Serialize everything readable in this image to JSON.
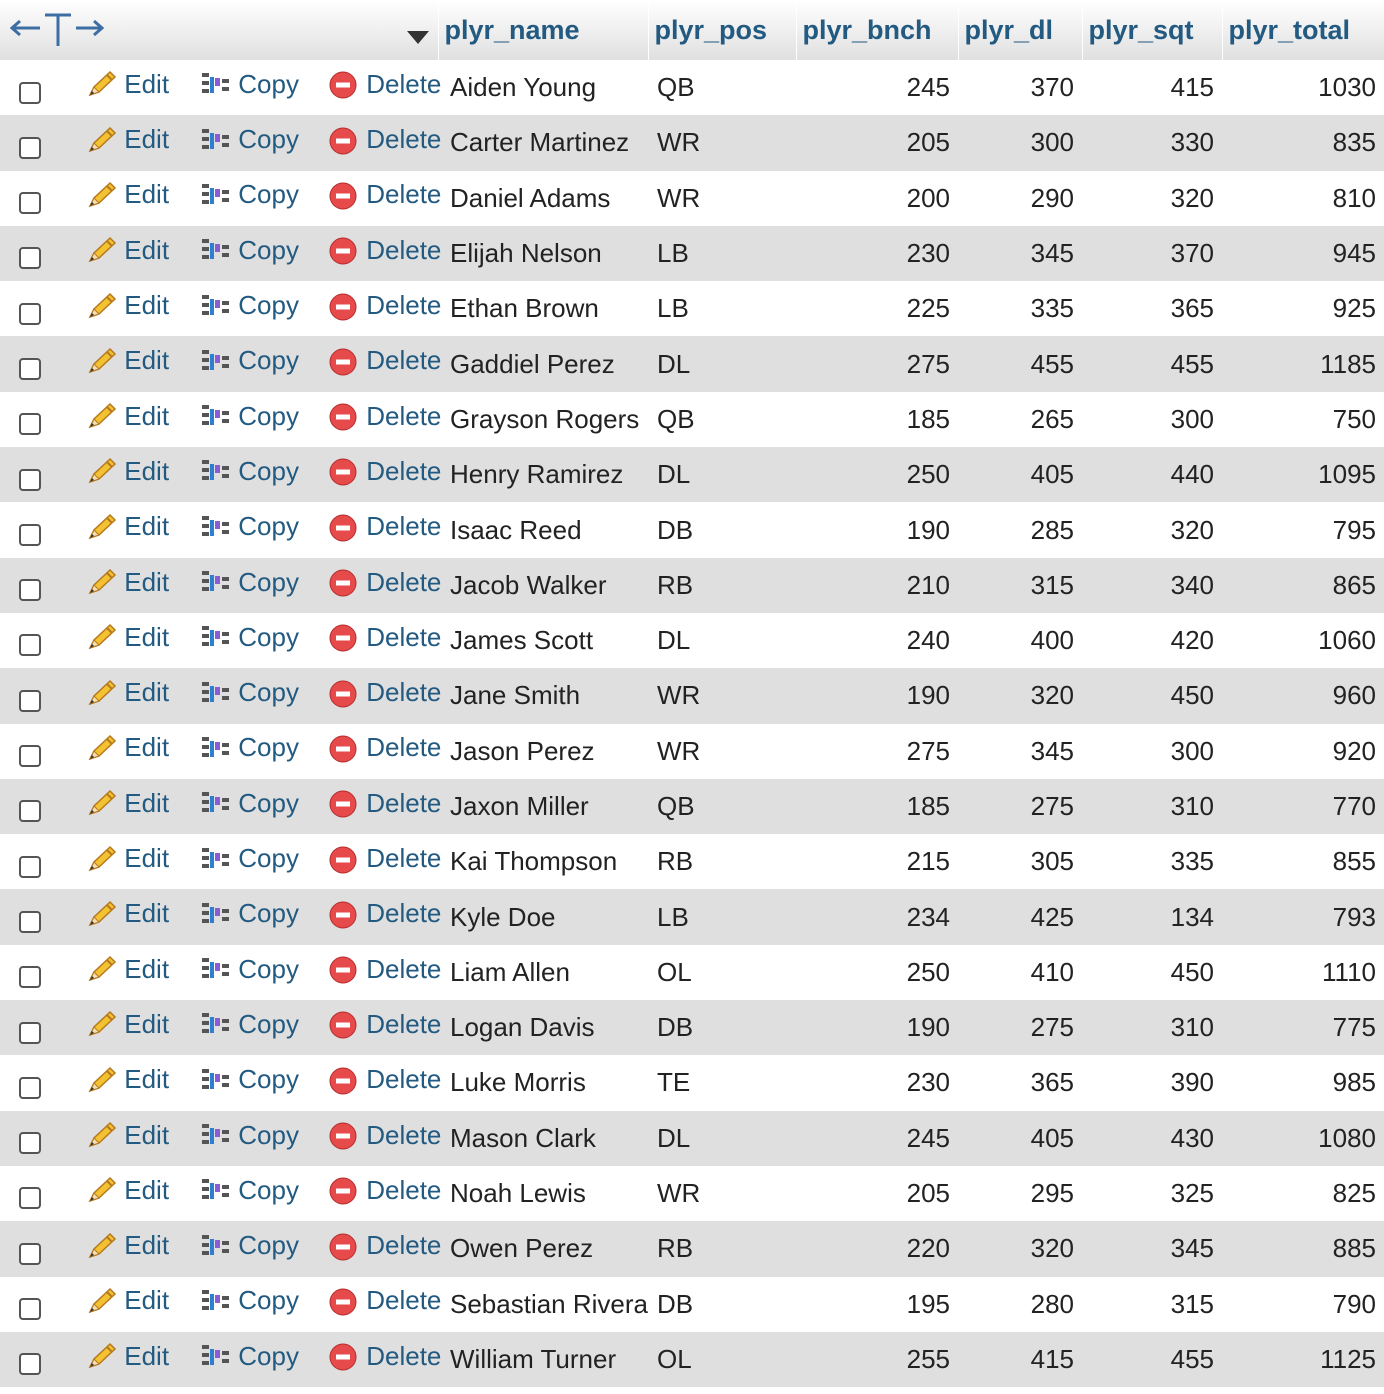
{
  "header": {
    "arrows_icon": "column-resize-arrows-icon",
    "sort_icon": "sort-triangle-down-icon",
    "columns": [
      "plyr_name",
      "plyr_pos",
      "plyr_bnch",
      "plyr_dl",
      "plyr_sqt",
      "plyr_total"
    ]
  },
  "actions": {
    "edit": "Edit",
    "copy": "Copy",
    "delete": "Delete"
  },
  "colors": {
    "link": "#235a81",
    "row_alt": "#dfdfdf",
    "delete_icon": "#e64a4a"
  },
  "rows": [
    {
      "name": "Aiden Young",
      "pos": "QB",
      "bnch": "245",
      "dl": "370",
      "sqt": "415",
      "total": "1030"
    },
    {
      "name": "Carter Martinez",
      "pos": "WR",
      "bnch": "205",
      "dl": "300",
      "sqt": "330",
      "total": "835"
    },
    {
      "name": "Daniel Adams",
      "pos": "WR",
      "bnch": "200",
      "dl": "290",
      "sqt": "320",
      "total": "810"
    },
    {
      "name": "Elijah Nelson",
      "pos": "LB",
      "bnch": "230",
      "dl": "345",
      "sqt": "370",
      "total": "945"
    },
    {
      "name": "Ethan Brown",
      "pos": "LB",
      "bnch": "225",
      "dl": "335",
      "sqt": "365",
      "total": "925"
    },
    {
      "name": "Gaddiel Perez",
      "pos": "DL",
      "bnch": "275",
      "dl": "455",
      "sqt": "455",
      "total": "1185"
    },
    {
      "name": "Grayson Rogers",
      "pos": "QB",
      "bnch": "185",
      "dl": "265",
      "sqt": "300",
      "total": "750"
    },
    {
      "name": "Henry Ramirez",
      "pos": "DL",
      "bnch": "250",
      "dl": "405",
      "sqt": "440",
      "total": "1095"
    },
    {
      "name": "Isaac Reed",
      "pos": "DB",
      "bnch": "190",
      "dl": "285",
      "sqt": "320",
      "total": "795"
    },
    {
      "name": "Jacob Walker",
      "pos": "RB",
      "bnch": "210",
      "dl": "315",
      "sqt": "340",
      "total": "865"
    },
    {
      "name": "James Scott",
      "pos": "DL",
      "bnch": "240",
      "dl": "400",
      "sqt": "420",
      "total": "1060"
    },
    {
      "name": "Jane Smith",
      "pos": "WR",
      "bnch": "190",
      "dl": "320",
      "sqt": "450",
      "total": "960"
    },
    {
      "name": "Jason Perez",
      "pos": "WR",
      "bnch": "275",
      "dl": "345",
      "sqt": "300",
      "total": "920"
    },
    {
      "name": "Jaxon Miller",
      "pos": "QB",
      "bnch": "185",
      "dl": "275",
      "sqt": "310",
      "total": "770"
    },
    {
      "name": "Kai Thompson",
      "pos": "RB",
      "bnch": "215",
      "dl": "305",
      "sqt": "335",
      "total": "855"
    },
    {
      "name": "Kyle Doe",
      "pos": "LB",
      "bnch": "234",
      "dl": "425",
      "sqt": "134",
      "total": "793"
    },
    {
      "name": "Liam Allen",
      "pos": "OL",
      "bnch": "250",
      "dl": "410",
      "sqt": "450",
      "total": "1110"
    },
    {
      "name": "Logan Davis",
      "pos": "DB",
      "bnch": "190",
      "dl": "275",
      "sqt": "310",
      "total": "775"
    },
    {
      "name": "Luke Morris",
      "pos": "TE",
      "bnch": "230",
      "dl": "365",
      "sqt": "390",
      "total": "985"
    },
    {
      "name": "Mason Clark",
      "pos": "DL",
      "bnch": "245",
      "dl": "405",
      "sqt": "430",
      "total": "1080"
    },
    {
      "name": "Noah Lewis",
      "pos": "WR",
      "bnch": "205",
      "dl": "295",
      "sqt": "325",
      "total": "825"
    },
    {
      "name": "Owen Perez",
      "pos": "RB",
      "bnch": "220",
      "dl": "320",
      "sqt": "345",
      "total": "885"
    },
    {
      "name": "Sebastian Rivera",
      "pos": "DB",
      "bnch": "195",
      "dl": "280",
      "sqt": "315",
      "total": "790"
    },
    {
      "name": "William Turner",
      "pos": "OL",
      "bnch": "255",
      "dl": "415",
      "sqt": "455",
      "total": "1125"
    }
  ]
}
